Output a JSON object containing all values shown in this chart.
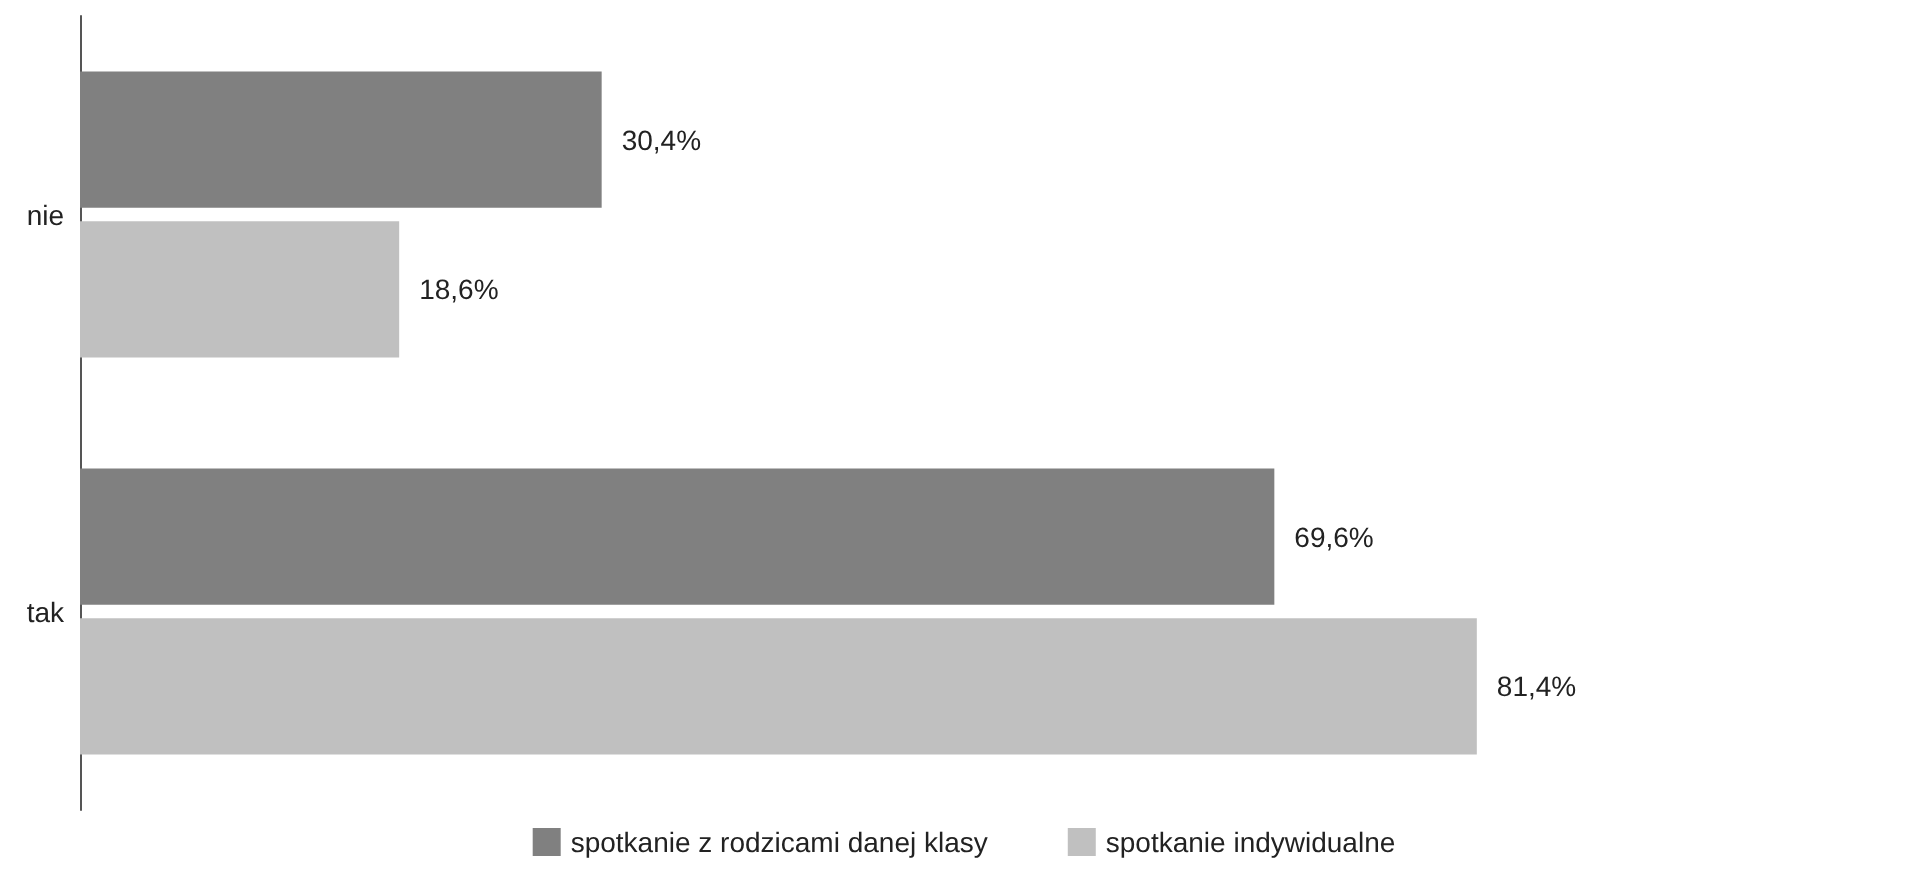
{
  "chart_data": {
    "type": "bar",
    "orientation": "horizontal",
    "categories": [
      "nie",
      "tak"
    ],
    "series": [
      {
        "name": "spotkanie z rodzicami danej klasy",
        "color": "#808080",
        "values": [
          30.4,
          69.6
        ],
        "value_labels": [
          "30,4%",
          "69,6%"
        ]
      },
      {
        "name": "spotkanie indywidualne",
        "color": "#c0c0c0",
        "values": [
          18.6,
          81.4
        ],
        "value_labels": [
          "18,6%",
          "81,4%"
        ]
      }
    ],
    "tick_labels": "y",
    "grid": false,
    "legend": "bottom"
  }
}
